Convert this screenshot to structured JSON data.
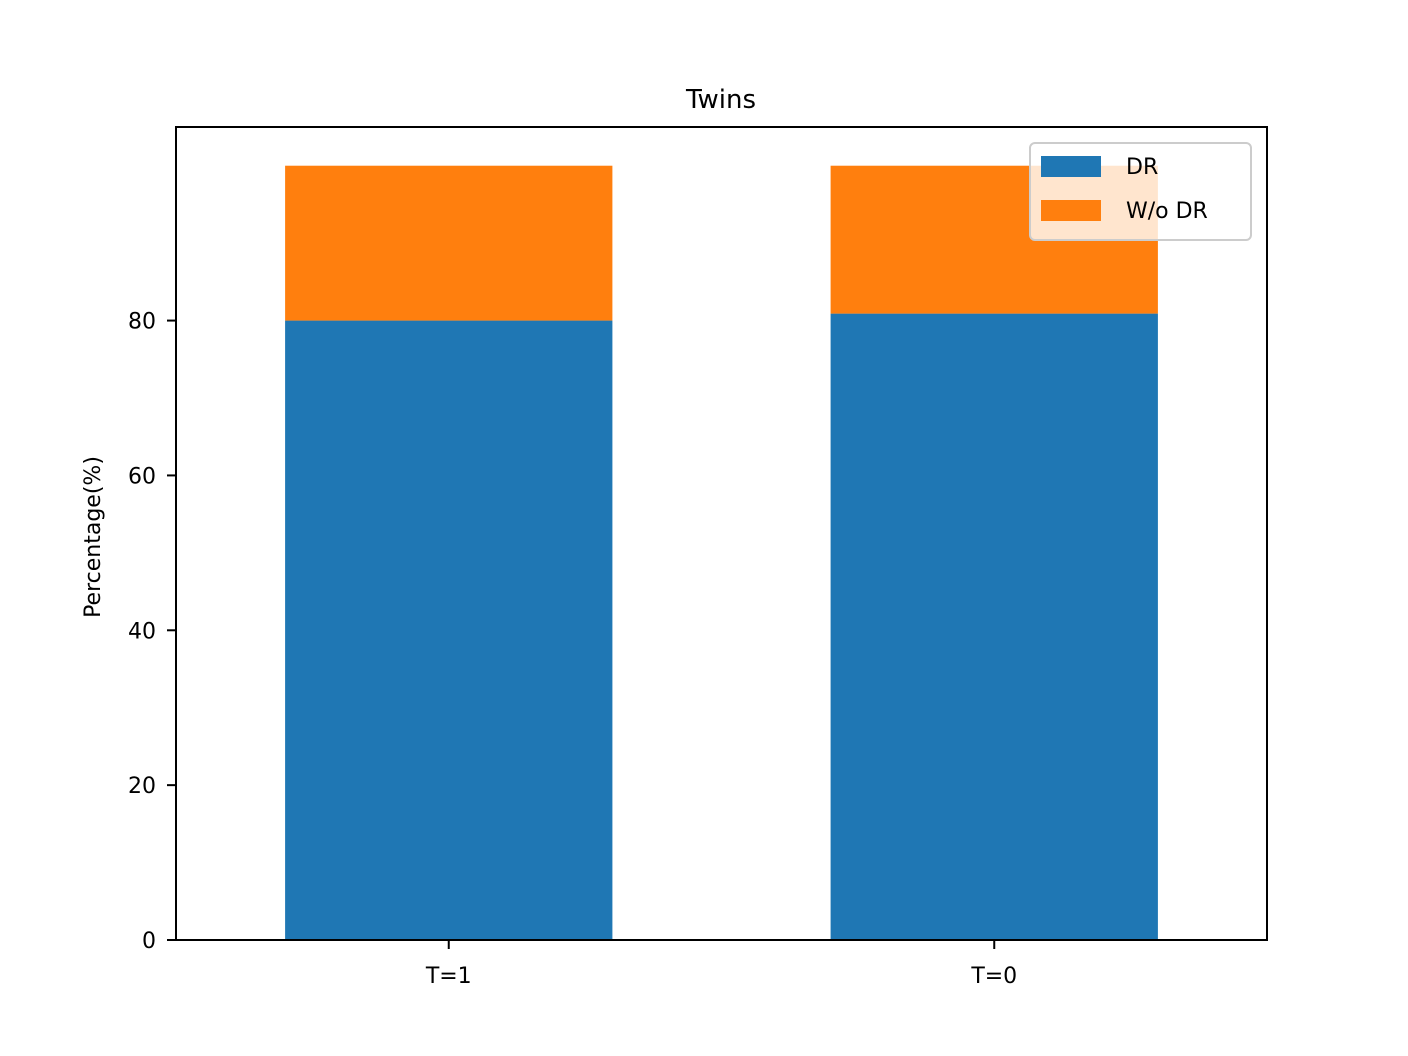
{
  "chart_data": {
    "type": "bar",
    "stacked": true,
    "title": "Twins",
    "xlabel": "",
    "ylabel": "Percentage(%)",
    "categories": [
      "T=1",
      "T=0"
    ],
    "series": [
      {
        "name": "DR",
        "values": [
          80.0,
          80.9
        ],
        "color": "#1f77b4"
      },
      {
        "name": "W/o DR",
        "values": [
          20.0,
          19.1
        ],
        "color": "#ff7f0e"
      }
    ],
    "ylim": [
      0,
      105
    ],
    "yticks": [
      0,
      20,
      40,
      60,
      80
    ],
    "grid": false,
    "legend": "top-right"
  }
}
